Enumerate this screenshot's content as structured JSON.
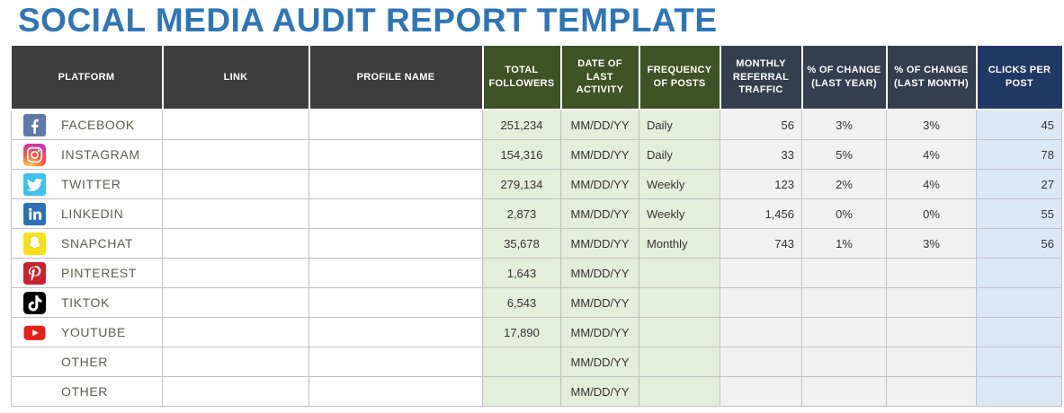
{
  "title": "SOCIAL MEDIA AUDIT REPORT TEMPLATE",
  "colors": {
    "title_blue": "#2E75B6",
    "header_dark": "#3D3D3D",
    "header_green": "#3E5326",
    "header_slate": "#333F50",
    "header_navy": "#203864",
    "cell_green": "#E2EFDA",
    "cell_gray": "#F1F1F2",
    "cell_blue": "#DBE8F5",
    "grid_line": "#C0C0C0",
    "platform_text": "#56614F",
    "facebook_blue": "#5B7AA9",
    "twitter_blue": "#3EC0F0",
    "linkedin_blue": "#2E70B5",
    "snapchat_yellow": "#F7E017",
    "pinterest_red": "#C8232C",
    "tiktok_black": "#000000",
    "youtube_red": "#E62117"
  },
  "table": {
    "columns": [
      {
        "key": "platform",
        "label": "PLATFORM",
        "group": "dark"
      },
      {
        "key": "link",
        "label": "LINK",
        "group": "dark"
      },
      {
        "key": "profile_name",
        "label": "PROFILE NAME",
        "group": "dark"
      },
      {
        "key": "total_followers",
        "label": "TOTAL FOLLOWERS",
        "group": "green"
      },
      {
        "key": "date_of_last_activity",
        "label": "DATE OF LAST ACTIVITY",
        "group": "green"
      },
      {
        "key": "frequency_of_posts",
        "label": "FREQUENCY OF POSTS",
        "group": "green"
      },
      {
        "key": "monthly_referral_traffic",
        "label": "MONTHLY REFERRAL TRAFFIC",
        "group": "slate"
      },
      {
        "key": "pct_change_last_year",
        "label": "% OF CHANGE (LAST YEAR)",
        "group": "slate"
      },
      {
        "key": "pct_change_last_month",
        "label": "% OF CHANGE (LAST MONTH)",
        "group": "slate"
      },
      {
        "key": "clicks_per_post",
        "label": "CLICKS PER POST",
        "group": "navy"
      }
    ],
    "rows": [
      {
        "icon": "facebook-icon",
        "platform": "FACEBOOK",
        "link": "",
        "profile_name": "",
        "total_followers": "251,234",
        "date_of_last_activity": "MM/DD/YY",
        "frequency_of_posts": "Daily",
        "monthly_referral_traffic": "56",
        "pct_change_last_year": "3%",
        "pct_change_last_month": "3%",
        "clicks_per_post": "45"
      },
      {
        "icon": "instagram-icon",
        "platform": "INSTAGRAM",
        "link": "",
        "profile_name": "",
        "total_followers": "154,316",
        "date_of_last_activity": "MM/DD/YY",
        "frequency_of_posts": "Daily",
        "monthly_referral_traffic": "33",
        "pct_change_last_year": "5%",
        "pct_change_last_month": "4%",
        "clicks_per_post": "78"
      },
      {
        "icon": "twitter-icon",
        "platform": "TWITTER",
        "link": "",
        "profile_name": "",
        "total_followers": "279,134",
        "date_of_last_activity": "MM/DD/YY",
        "frequency_of_posts": "Weekly",
        "monthly_referral_traffic": "123",
        "pct_change_last_year": "2%",
        "pct_change_last_month": "4%",
        "clicks_per_post": "27"
      },
      {
        "icon": "linkedin-icon",
        "platform": "LINKEDIN",
        "link": "",
        "profile_name": "",
        "total_followers": "2,873",
        "date_of_last_activity": "MM/DD/YY",
        "frequency_of_posts": "Weekly",
        "monthly_referral_traffic": "1,456",
        "pct_change_last_year": "0%",
        "pct_change_last_month": "0%",
        "clicks_per_post": "55"
      },
      {
        "icon": "snapchat-icon",
        "platform": "SNAPCHAT",
        "link": "",
        "profile_name": "",
        "total_followers": "35,678",
        "date_of_last_activity": "MM/DD/YY",
        "frequency_of_posts": "Monthly",
        "monthly_referral_traffic": "743",
        "pct_change_last_year": "1%",
        "pct_change_last_month": "3%",
        "clicks_per_post": "56"
      },
      {
        "icon": "pinterest-icon",
        "platform": "PINTEREST",
        "link": "",
        "profile_name": "",
        "total_followers": "1,643",
        "date_of_last_activity": "MM/DD/YY",
        "frequency_of_posts": "",
        "monthly_referral_traffic": "",
        "pct_change_last_year": "",
        "pct_change_last_month": "",
        "clicks_per_post": ""
      },
      {
        "icon": "tiktok-icon",
        "platform": "TIKTOK",
        "link": "",
        "profile_name": "",
        "total_followers": "6,543",
        "date_of_last_activity": "MM/DD/YY",
        "frequency_of_posts": "",
        "monthly_referral_traffic": "",
        "pct_change_last_year": "",
        "pct_change_last_month": "",
        "clicks_per_post": ""
      },
      {
        "icon": "youtube-icon",
        "platform": "YOUTUBE",
        "link": "",
        "profile_name": "",
        "total_followers": "17,890",
        "date_of_last_activity": "MM/DD/YY",
        "frequency_of_posts": "",
        "monthly_referral_traffic": "",
        "pct_change_last_year": "",
        "pct_change_last_month": "",
        "clicks_per_post": ""
      },
      {
        "icon": "",
        "platform": "OTHER",
        "link": "",
        "profile_name": "",
        "total_followers": "",
        "date_of_last_activity": "MM/DD/YY",
        "frequency_of_posts": "",
        "monthly_referral_traffic": "",
        "pct_change_last_year": "",
        "pct_change_last_month": "",
        "clicks_per_post": ""
      },
      {
        "icon": "",
        "platform": "OTHER",
        "link": "",
        "profile_name": "",
        "total_followers": "",
        "date_of_last_activity": "MM/DD/YY",
        "frequency_of_posts": "",
        "monthly_referral_traffic": "",
        "pct_change_last_year": "",
        "pct_change_last_month": "",
        "clicks_per_post": ""
      }
    ]
  }
}
